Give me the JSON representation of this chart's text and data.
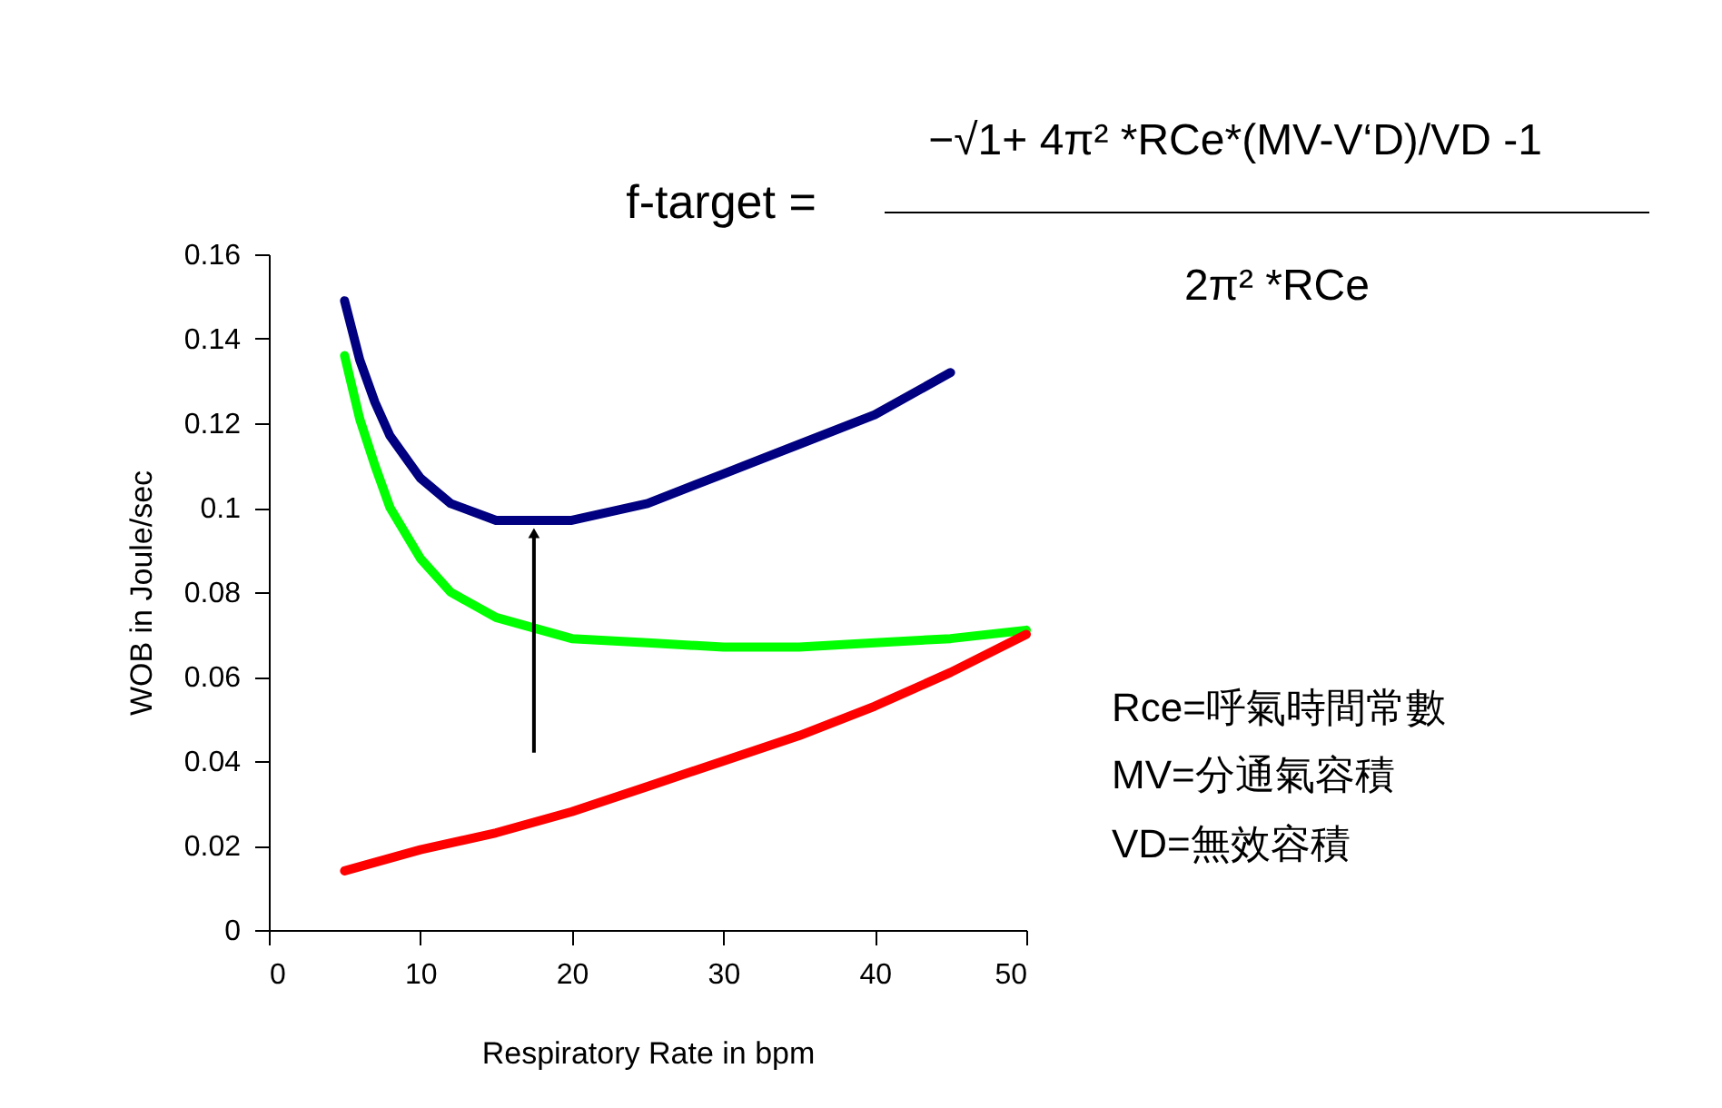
{
  "chart_data": {
    "type": "line",
    "xlabel": "Respiratory Rate in bpm",
    "ylabel": "WOB in Joule/sec",
    "xlim": [
      0,
      50
    ],
    "xticks": [
      0,
      10,
      20,
      30,
      40,
      50
    ],
    "ylim": [
      0,
      0.16
    ],
    "yticks": [
      0,
      0.02,
      0.04,
      0.06,
      0.08,
      0.1,
      0.12,
      0.14,
      0.16
    ],
    "grid": false,
    "legend": false,
    "marker": "none",
    "line_style": "solid",
    "series": [
      {
        "color": "#000080",
        "x": [
          5,
          6,
          7,
          8,
          10,
          12,
          15,
          18,
          20,
          25,
          30,
          35,
          40,
          45
        ],
        "values": [
          0.149,
          0.135,
          0.125,
          0.117,
          0.107,
          0.101,
          0.097,
          0.097,
          0.097,
          0.101,
          0.108,
          0.115,
          0.122,
          0.132
        ]
      },
      {
        "color": "#00ff00",
        "x": [
          5,
          6,
          7,
          8,
          10,
          12,
          15,
          20,
          25,
          30,
          35,
          40,
          45,
          50
        ],
        "values": [
          0.136,
          0.121,
          0.11,
          0.1,
          0.088,
          0.08,
          0.074,
          0.069,
          0.068,
          0.067,
          0.067,
          0.068,
          0.069,
          0.071
        ]
      },
      {
        "color": "#ff0000",
        "x": [
          5,
          10,
          15,
          20,
          25,
          30,
          35,
          40,
          45,
          50
        ],
        "values": [
          0.014,
          0.019,
          0.023,
          0.028,
          0.034,
          0.04,
          0.046,
          0.053,
          0.061,
          0.07
        ]
      }
    ],
    "annotations": [
      "f-target =",
      "−√1+ 4π² *RCe*(MV-V‘D)/VD -1",
      "2π² *RCe",
      "Rce=呼氣時間常數",
      "MV=分通氣容積",
      "VD=無效容積"
    ]
  }
}
